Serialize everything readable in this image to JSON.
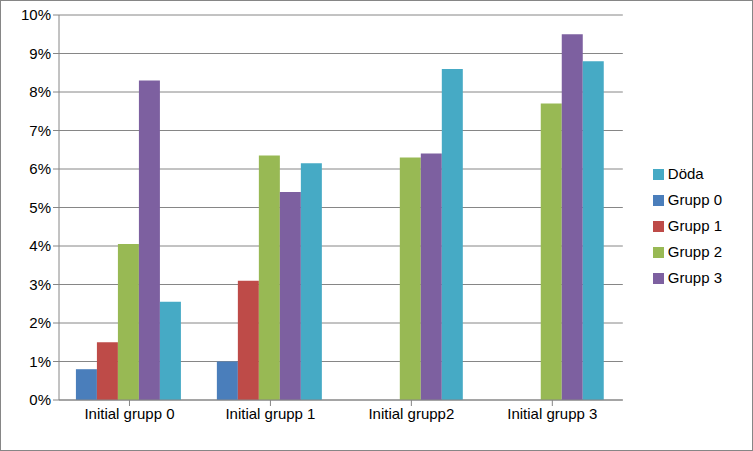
{
  "chart_data": {
    "type": "bar",
    "categories": [
      "Initial grupp 0",
      "Initial grupp 1",
      "Initial grupp2",
      "Initial grupp 3"
    ],
    "series": [
      {
        "name": "Grupp 0",
        "color": "#4a7ebb",
        "values": [
          0.8,
          1.0,
          null,
          null
        ]
      },
      {
        "name": "Grupp 1",
        "color": "#be4b48",
        "values": [
          1.5,
          3.1,
          null,
          null
        ]
      },
      {
        "name": "Grupp 2",
        "color": "#98b954",
        "values": [
          4.05,
          6.35,
          6.3,
          7.7
        ]
      },
      {
        "name": "Grupp 3",
        "color": "#7d60a0",
        "values": [
          8.3,
          5.4,
          6.4,
          9.5
        ]
      },
      {
        "name": "Döda",
        "color": "#46aac5",
        "values": [
          2.55,
          6.15,
          8.6,
          8.8
        ]
      }
    ],
    "ylim": [
      0,
      10
    ],
    "yticks": [
      {
        "value": 0,
        "label": "0%"
      },
      {
        "value": 1,
        "label": "1%"
      },
      {
        "value": 2,
        "label": "2%"
      },
      {
        "value": 3,
        "label": "3%"
      },
      {
        "value": 4,
        "label": "4%"
      },
      {
        "value": 5,
        "label": "5%"
      },
      {
        "value": 6,
        "label": "6%"
      },
      {
        "value": 7,
        "label": "7%"
      },
      {
        "value": 8,
        "label": "8%"
      },
      {
        "value": 9,
        "label": "9%"
      },
      {
        "value": 10,
        "label": "10%"
      }
    ],
    "grid": true,
    "legend": "right"
  }
}
